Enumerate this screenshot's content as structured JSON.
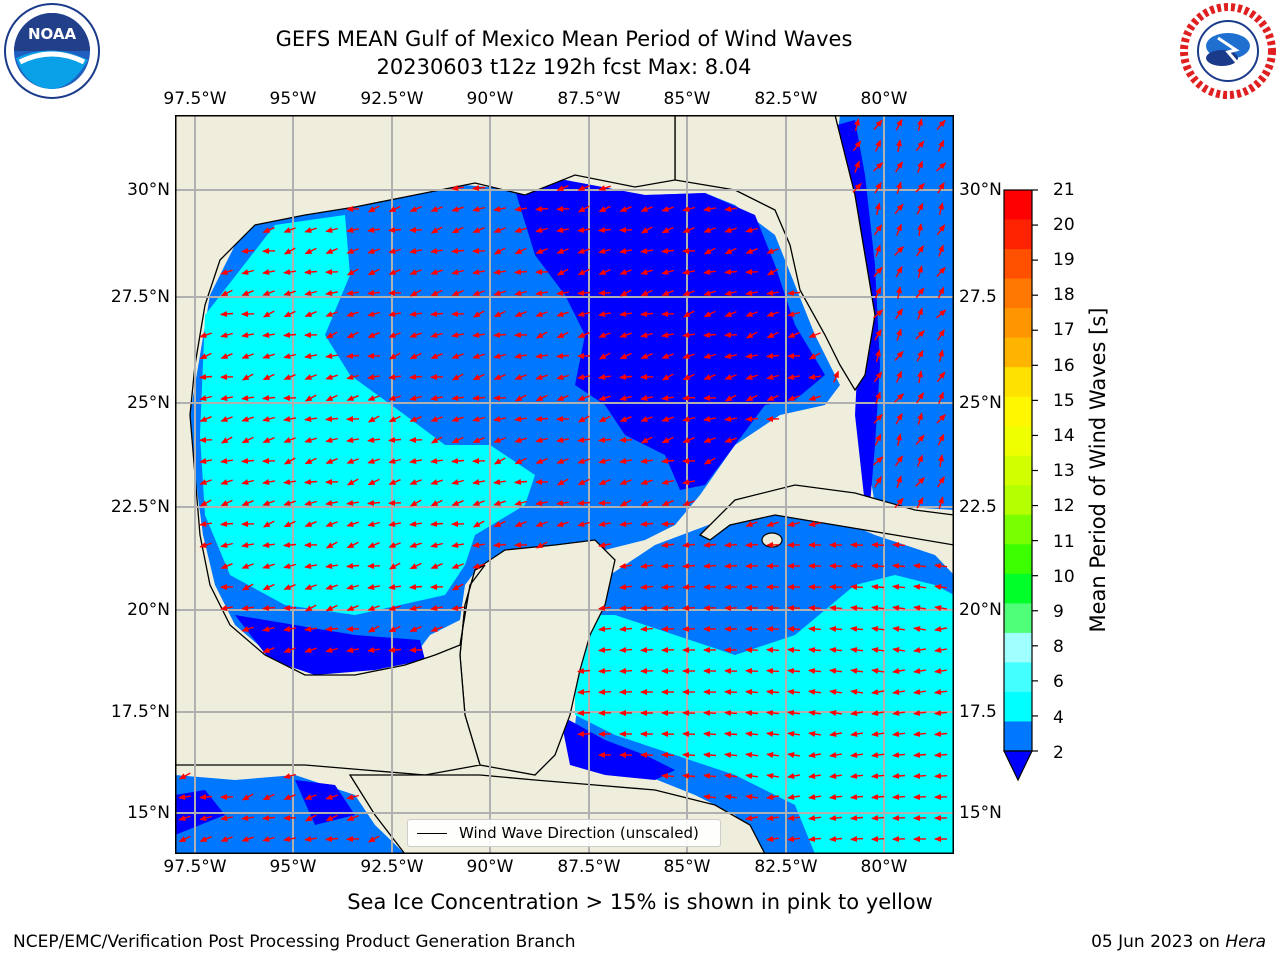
{
  "header": {
    "title_line1": "GEFS MEAN Gulf of Mexico Mean Period of Wind Waves",
    "title_line2": "20230603 t12z 192h fcst   Max: 8.04"
  },
  "logos": {
    "left": {
      "name": "NOAA",
      "text": "NOAA"
    },
    "right": {
      "name": "National Weather Service"
    }
  },
  "map": {
    "region": "Gulf of Mexico",
    "lon_labels": [
      "97.5°W",
      "95°W",
      "92.5°W",
      "90°W",
      "87.5°W",
      "85°W",
      "82.5°W",
      "80°W"
    ],
    "lat_labels": [
      "30°N",
      "27.5°N",
      "25°N",
      "22.5°N",
      "20°N",
      "17.5°N",
      "15°N"
    ],
    "lat_labels_right": [
      "30°N",
      "27.5",
      "25°N",
      "22.5",
      "20°N",
      "17.5",
      "15°N"
    ],
    "colors": {
      "land": "#efeedc",
      "water_low": "#0000ff",
      "water_2_4": "#0077ff",
      "water_4_6": "#00ffff",
      "water_6_8": "#44ffff",
      "arrows": "#ff0000",
      "grid": "#b0b0b0"
    },
    "legend_label": "Wind Wave Direction (unscaled)"
  },
  "colorbar": {
    "label": "Mean Period of Wind Waves [s]",
    "ticks": [
      "21",
      "20",
      "19",
      "18",
      "17",
      "16",
      "15",
      "14",
      "13",
      "12",
      "11",
      "10",
      "9",
      "8",
      "6",
      "4",
      "2"
    ],
    "colors": [
      "#ff0000",
      "#ff2200",
      "#ff5000",
      "#ff7800",
      "#ff9600",
      "#ffb400",
      "#ffe100",
      "#fff700",
      "#f0ff00",
      "#d2ff00",
      "#b4ff00",
      "#78ff00",
      "#3cff00",
      "#00ff28",
      "#50ff78",
      "#a0ffff",
      "#44ffff",
      "#00ffff",
      "#0077ff"
    ],
    "extend_color": "#0000ff"
  },
  "notes": {
    "ice": "Sea Ice Concentration > 15% is shown in pink to yellow"
  },
  "footer": {
    "left": "NCEP/EMC/Verification Post Processing Product Generation Branch",
    "date": "05 Jun 2023 on",
    "host": "Hera"
  }
}
